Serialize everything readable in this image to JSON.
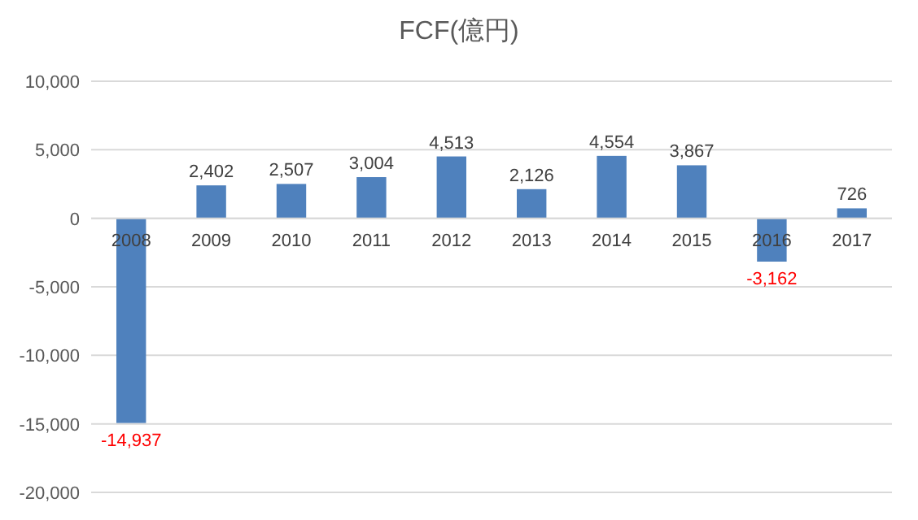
{
  "chart_data": {
    "type": "bar",
    "title": "FCF(億円)",
    "categories": [
      "2008",
      "2009",
      "2010",
      "2011",
      "2012",
      "2013",
      "2014",
      "2015",
      "2016",
      "2017"
    ],
    "values": [
      -14937,
      2402,
      2507,
      3004,
      4513,
      2126,
      4554,
      3867,
      -3162,
      726
    ],
    "color": "#4f81bd",
    "ylim": [
      -20000,
      10000
    ],
    "yticks": [
      {
        "value": -20000,
        "label": "-20,000"
      },
      {
        "value": -15000,
        "label": "-15,000"
      },
      {
        "value": -10000,
        "label": "-10,000"
      },
      {
        "value": -5000,
        "label": "-5,000"
      },
      0,
      {
        "value": 5000,
        "label": "5,000"
      },
      {
        "value": 10000,
        "label": "10,000"
      }
    ],
    "value_labels": [
      "-14,937",
      "2,402",
      "2,507",
      "3,004",
      "4,513",
      "2,126",
      "4,554",
      "3,867",
      "-3,162",
      "726"
    ],
    "grid": "y"
  }
}
